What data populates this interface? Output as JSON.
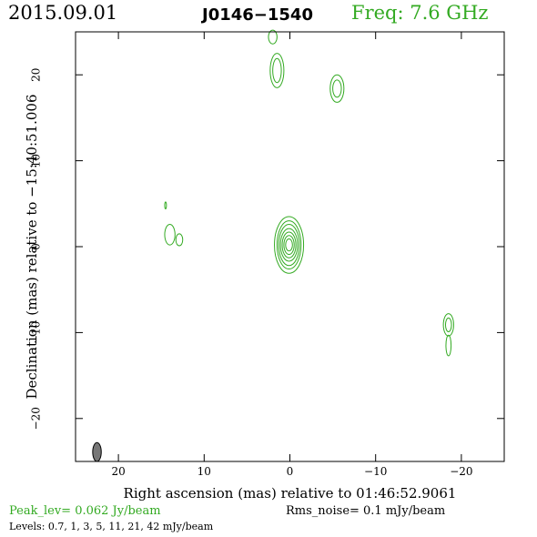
{
  "header": {
    "date": "2015.09.01",
    "source": "J0146−1540",
    "freq": "Freq: 7.6 GHz"
  },
  "footer": {
    "peak": "Peak_lev=  0.062 Jy/beam",
    "rms": "Rms_noise=   0.1 mJy/beam",
    "levels": "Levels: 0.7,    1,    3,    5,   11,   21,   42 mJy/beam"
  },
  "colors": {
    "contour": "#33aa22",
    "beam": "#777777",
    "axes": "#000000"
  },
  "chart_data": {
    "type": "contour",
    "xlabel": "Right ascension (mas) relative to 01:46:52.9061",
    "ylabel": "Declination (mas) relative to −15:40:51.006",
    "xlim": [
      25,
      -25
    ],
    "ylim": [
      -25,
      25
    ],
    "xticks": [
      20,
      10,
      0,
      -10,
      -20
    ],
    "xtick_labels": [
      "20",
      "10",
      "0",
      "−10",
      "−20"
    ],
    "yticks": [
      20,
      10,
      0,
      -10,
      -20
    ],
    "ytick_labels": [
      "20",
      "10",
      "0",
      "−10",
      "−20"
    ],
    "levels_mJy": [
      0.7,
      1,
      3,
      5,
      11,
      21,
      42
    ],
    "components": [
      {
        "x": 0.1,
        "y": 0.2,
        "rx": [
          1.7,
          1.4,
          1.2,
          1.0,
          0.8,
          0.6,
          0.4
        ],
        "ry": [
          3.3,
          2.8,
          2.4,
          1.9,
          1.5,
          1.1,
          0.7
        ]
      },
      {
        "x": 1.5,
        "y": 20.5,
        "rx": [
          0.8,
          0.5
        ],
        "ry": [
          2.0,
          1.4
        ]
      },
      {
        "x": 2.0,
        "y": 24.4,
        "rx": [
          0.5
        ],
        "ry": [
          0.8
        ]
      },
      {
        "x": -5.5,
        "y": 18.4,
        "rx": [
          0.8,
          0.5
        ],
        "ry": [
          1.6,
          1.0
        ]
      },
      {
        "x": 14.0,
        "y": 1.4,
        "rx": [
          0.6
        ],
        "ry": [
          1.2
        ]
      },
      {
        "x": 12.9,
        "y": 0.8,
        "rx": [
          0.4
        ],
        "ry": [
          0.7
        ]
      },
      {
        "x": 14.5,
        "y": 4.8,
        "rx": [
          0.1
        ],
        "ry": [
          0.4
        ]
      },
      {
        "x": -18.5,
        "y": -9.1,
        "rx": [
          0.6,
          0.35
        ],
        "ry": [
          1.3,
          0.8
        ]
      },
      {
        "x": -18.5,
        "y": -11.5,
        "rx": [
          0.3
        ],
        "ry": [
          1.2
        ]
      }
    ],
    "beam": {
      "x": 22.5,
      "y": -23.9,
      "major_mas": 2.2,
      "minor_mas": 1.0,
      "pa_deg": 0
    }
  }
}
